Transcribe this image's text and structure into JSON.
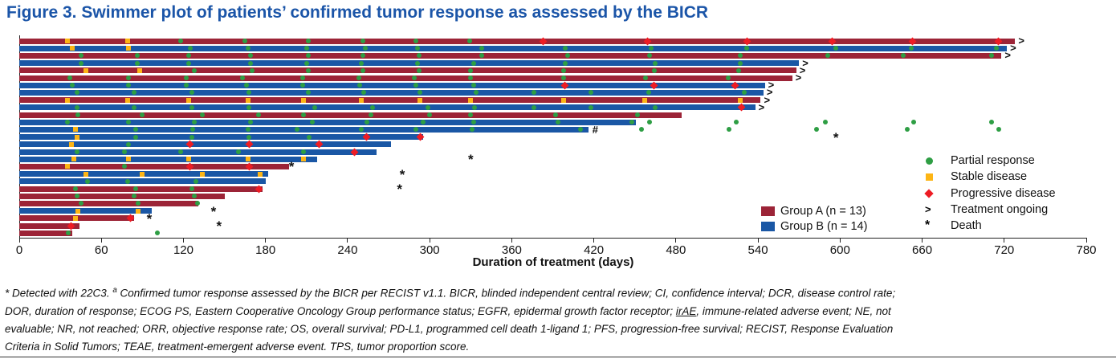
{
  "title": "Figure 3. Swimmer plot of patients’ confirmed tumor response as assessed by the BICR",
  "chart_data": {
    "type": "swimmer",
    "xlabel": "Duration of treatment (days)",
    "xlim": [
      0,
      780
    ],
    "x_ticks": [
      0,
      60,
      120,
      180,
      240,
      300,
      360,
      420,
      480,
      540,
      600,
      660,
      720,
      780
    ],
    "grid": false,
    "colors": {
      "group_a": "#9C2437",
      "group_b": "#1A57A5",
      "partial_response": "#2E9E44",
      "stable_disease": "#FDB515",
      "progressive_disease": "#ED1C24",
      "title_blue": "#1B55A8"
    },
    "groups": [
      {
        "id": "A",
        "label": "Group A (n = 13)",
        "color": "#9C2437"
      },
      {
        "id": "B",
        "label": "Group B (n = 14)",
        "color": "#1A57A5"
      }
    ],
    "marker_legend": [
      {
        "symbol": "circle",
        "color": "#2E9E44",
        "label": "Partial response"
      },
      {
        "symbol": "square",
        "color": "#FDB515",
        "label": "Stable disease"
      },
      {
        "symbol": "diamond",
        "color": "#ED1C24",
        "label": "Progressive disease"
      },
      {
        "symbol": ">",
        "color": "#111111",
        "label": "Treatment ongoing"
      },
      {
        "symbol": "*",
        "color": "#111111",
        "label": "Death"
      }
    ],
    "patients": [
      {
        "group": "A",
        "end": 728,
        "ongoing": true,
        "sd": [
          35,
          79
        ],
        "pr": [
          118,
          165,
          211,
          251,
          290,
          329
        ],
        "pd": [
          383,
          459,
          532,
          594,
          653,
          716
        ]
      },
      {
        "group": "B",
        "end": 722,
        "ongoing": true,
        "sd": [
          39,
          80
        ],
        "pr": [
          125,
          167,
          210,
          253,
          291,
          338,
          399,
          462,
          532,
          597,
          652,
          714
        ]
      },
      {
        "group": "A",
        "end": 718,
        "ongoing": true,
        "pr": [
          45,
          86,
          124,
          169,
          211,
          251,
          292,
          338,
          401,
          461,
          527,
          591,
          646,
          711
        ]
      },
      {
        "group": "B",
        "end": 570,
        "ongoing": true,
        "pr": [
          45,
          86,
          124,
          169,
          210,
          250,
          291,
          332,
          399,
          465,
          527
        ]
      },
      {
        "group": "A",
        "end": 568,
        "ongoing": true,
        "sd": [
          49,
          88
        ],
        "pr": [
          128,
          170,
          211,
          251,
          292,
          330,
          398,
          464,
          526
        ]
      },
      {
        "group": "A",
        "end": 565,
        "ongoing": true,
        "pr": [
          37,
          80,
          122,
          163,
          207,
          248,
          289,
          330,
          398,
          458,
          518
        ]
      },
      {
        "group": "B",
        "end": 545,
        "ongoing": true,
        "pr": [
          39,
          80,
          122,
          166,
          207,
          249,
          290,
          332
        ],
        "pd": [
          399,
          464,
          523
        ]
      },
      {
        "group": "B",
        "end": 544,
        "ongoing": true,
        "pr": [
          42,
          84,
          126,
          168,
          211,
          252,
          293,
          334,
          376,
          418,
          460,
          530
        ]
      },
      {
        "group": "A",
        "end": 542,
        "ongoing": true,
        "sd": [
          35,
          79,
          124,
          167,
          208,
          250,
          293,
          330,
          398,
          457,
          527
        ]
      },
      {
        "group": "B",
        "end": 538,
        "ongoing": true,
        "pr": [
          42,
          84,
          126,
          168,
          216,
          258,
          299,
          333,
          376,
          418,
          465
        ],
        "pd": [
          528
        ]
      },
      {
        "group": "A",
        "end": 484,
        "pr": [
          43,
          90,
          134,
          175,
          208,
          257,
          300,
          330,
          392,
          452
        ]
      },
      {
        "group": "B",
        "end": 451,
        "pr": [
          35,
          80,
          128,
          169,
          214,
          254,
          295,
          332,
          394,
          448
        ],
        "post_pr": [
          461,
          524,
          589,
          654,
          711
        ]
      },
      {
        "group": "B",
        "end": 416,
        "hash": true,
        "sd": [
          41
        ],
        "pr": [
          85,
          127,
          167,
          203,
          250,
          290,
          331,
          410
        ],
        "post_pr": [
          455,
          519,
          583,
          649,
          716
        ]
      },
      {
        "group": "B",
        "end": 295,
        "sd": [
          42
        ],
        "pr": [
          85,
          126,
          168,
          212
        ],
        "pd": [
          254,
          293
        ],
        "death": 598
      },
      {
        "group": "B",
        "end": 272,
        "sd": [
          38
        ],
        "pr": [
          80
        ],
        "pd": [
          125,
          168,
          219
        ]
      },
      {
        "group": "B",
        "end": 261,
        "pr": [
          42,
          77,
          118,
          160,
          208
        ],
        "pd": [
          245
        ]
      },
      {
        "group": "B",
        "end": 218,
        "sd": [
          40,
          80,
          124,
          167,
          208
        ],
        "death": 331
      },
      {
        "group": "A",
        "end": 197,
        "sd": [
          35
        ],
        "pr": [
          77
        ],
        "pd": [
          125,
          168
        ],
        "death": 200
      },
      {
        "group": "B",
        "end": 182,
        "sd": [
          49,
          90,
          134,
          176
        ],
        "death": 281
      },
      {
        "group": "B",
        "end": 180,
        "pr": [
          50,
          79,
          129
        ]
      },
      {
        "group": "A",
        "end": 178,
        "pr": [
          41,
          85,
          126
        ],
        "pd": [
          175
        ],
        "death": 279
      },
      {
        "group": "A",
        "end": 150,
        "pr": [
          42,
          84,
          128
        ]
      },
      {
        "group": "A",
        "end": 131,
        "pr": [
          45,
          87,
          130
        ]
      },
      {
        "group": "B",
        "end": 97,
        "sd": [
          43,
          87
        ],
        "death": 143
      },
      {
        "group": "A",
        "end": 84,
        "sd": [
          41
        ],
        "pd": [
          81
        ],
        "death": 96
      },
      {
        "group": "A",
        "end": 44,
        "pd": [
          38
        ],
        "death": 147
      },
      {
        "group": "A",
        "end": 39,
        "pr": [
          36
        ],
        "post_pr": [
          101
        ]
      }
    ]
  },
  "footnote": {
    "lines": [
      [
        {
          "t": "* Detected with 22C3. "
        },
        {
          "t": "a",
          "sup": true
        },
        {
          "t": " Confirmed tumor response assessed by the BICR per RECIST v1.1. BICR, blinded independent central review; CI, confidence interval; DCR, disease control rate;"
        }
      ],
      [
        {
          "t": "DOR, duration of response; ECOG PS, Eastern Cooperative Oncology Group performance status; EGFR, epidermal growth factor receptor; "
        },
        {
          "t": "irAE",
          "u": true
        },
        {
          "t": ", immune-related adverse event; NE, not"
        }
      ],
      [
        {
          "t": "evaluable; NR, not reached; ORR, objective response rate; OS, overall survival; PD-L1, programmed cell death 1-ligand 1; PFS, progression-free survival; RECIST, Response Evaluation"
        }
      ],
      [
        {
          "t": "Criteria in Solid Tumors; TEAE, treatment-emergent adverse event. TPS, tumor proportion score."
        }
      ]
    ]
  }
}
